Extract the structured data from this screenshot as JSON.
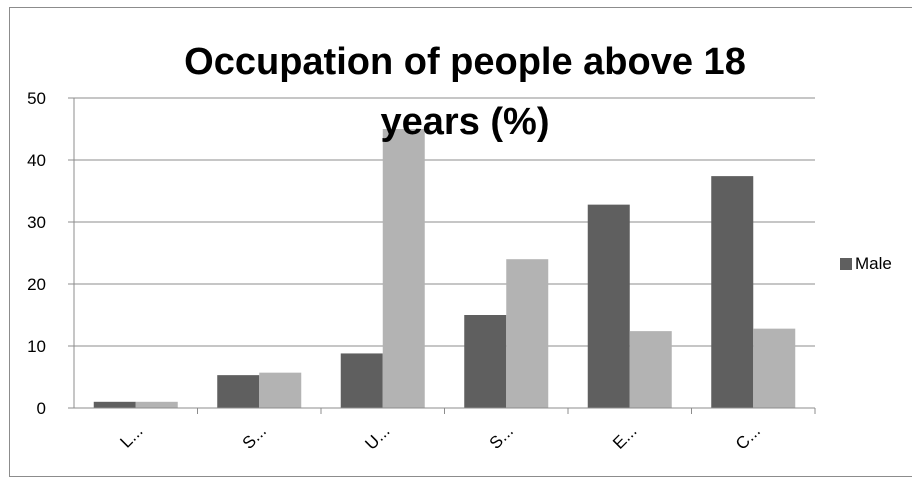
{
  "chart_data": {
    "type": "bar",
    "title_lines": [
      "Occupation of people above 18",
      "years (%)"
    ],
    "categories": [
      "L...",
      "S...",
      "U...",
      "S...",
      "E...",
      "C..."
    ],
    "series": [
      {
        "name": "Male",
        "color": "#5f5f5f",
        "values": [
          1,
          5.3,
          8.8,
          15,
          32.8,
          37.4
        ]
      },
      {
        "color": "#b3b3b3",
        "values": [
          1,
          5.7,
          45,
          24,
          12.4,
          12.8
        ]
      }
    ],
    "ylim": [
      0,
      50
    ],
    "yticks": [
      0,
      10,
      20,
      30,
      40,
      50
    ],
    "grid": true,
    "legend_position": "right"
  }
}
